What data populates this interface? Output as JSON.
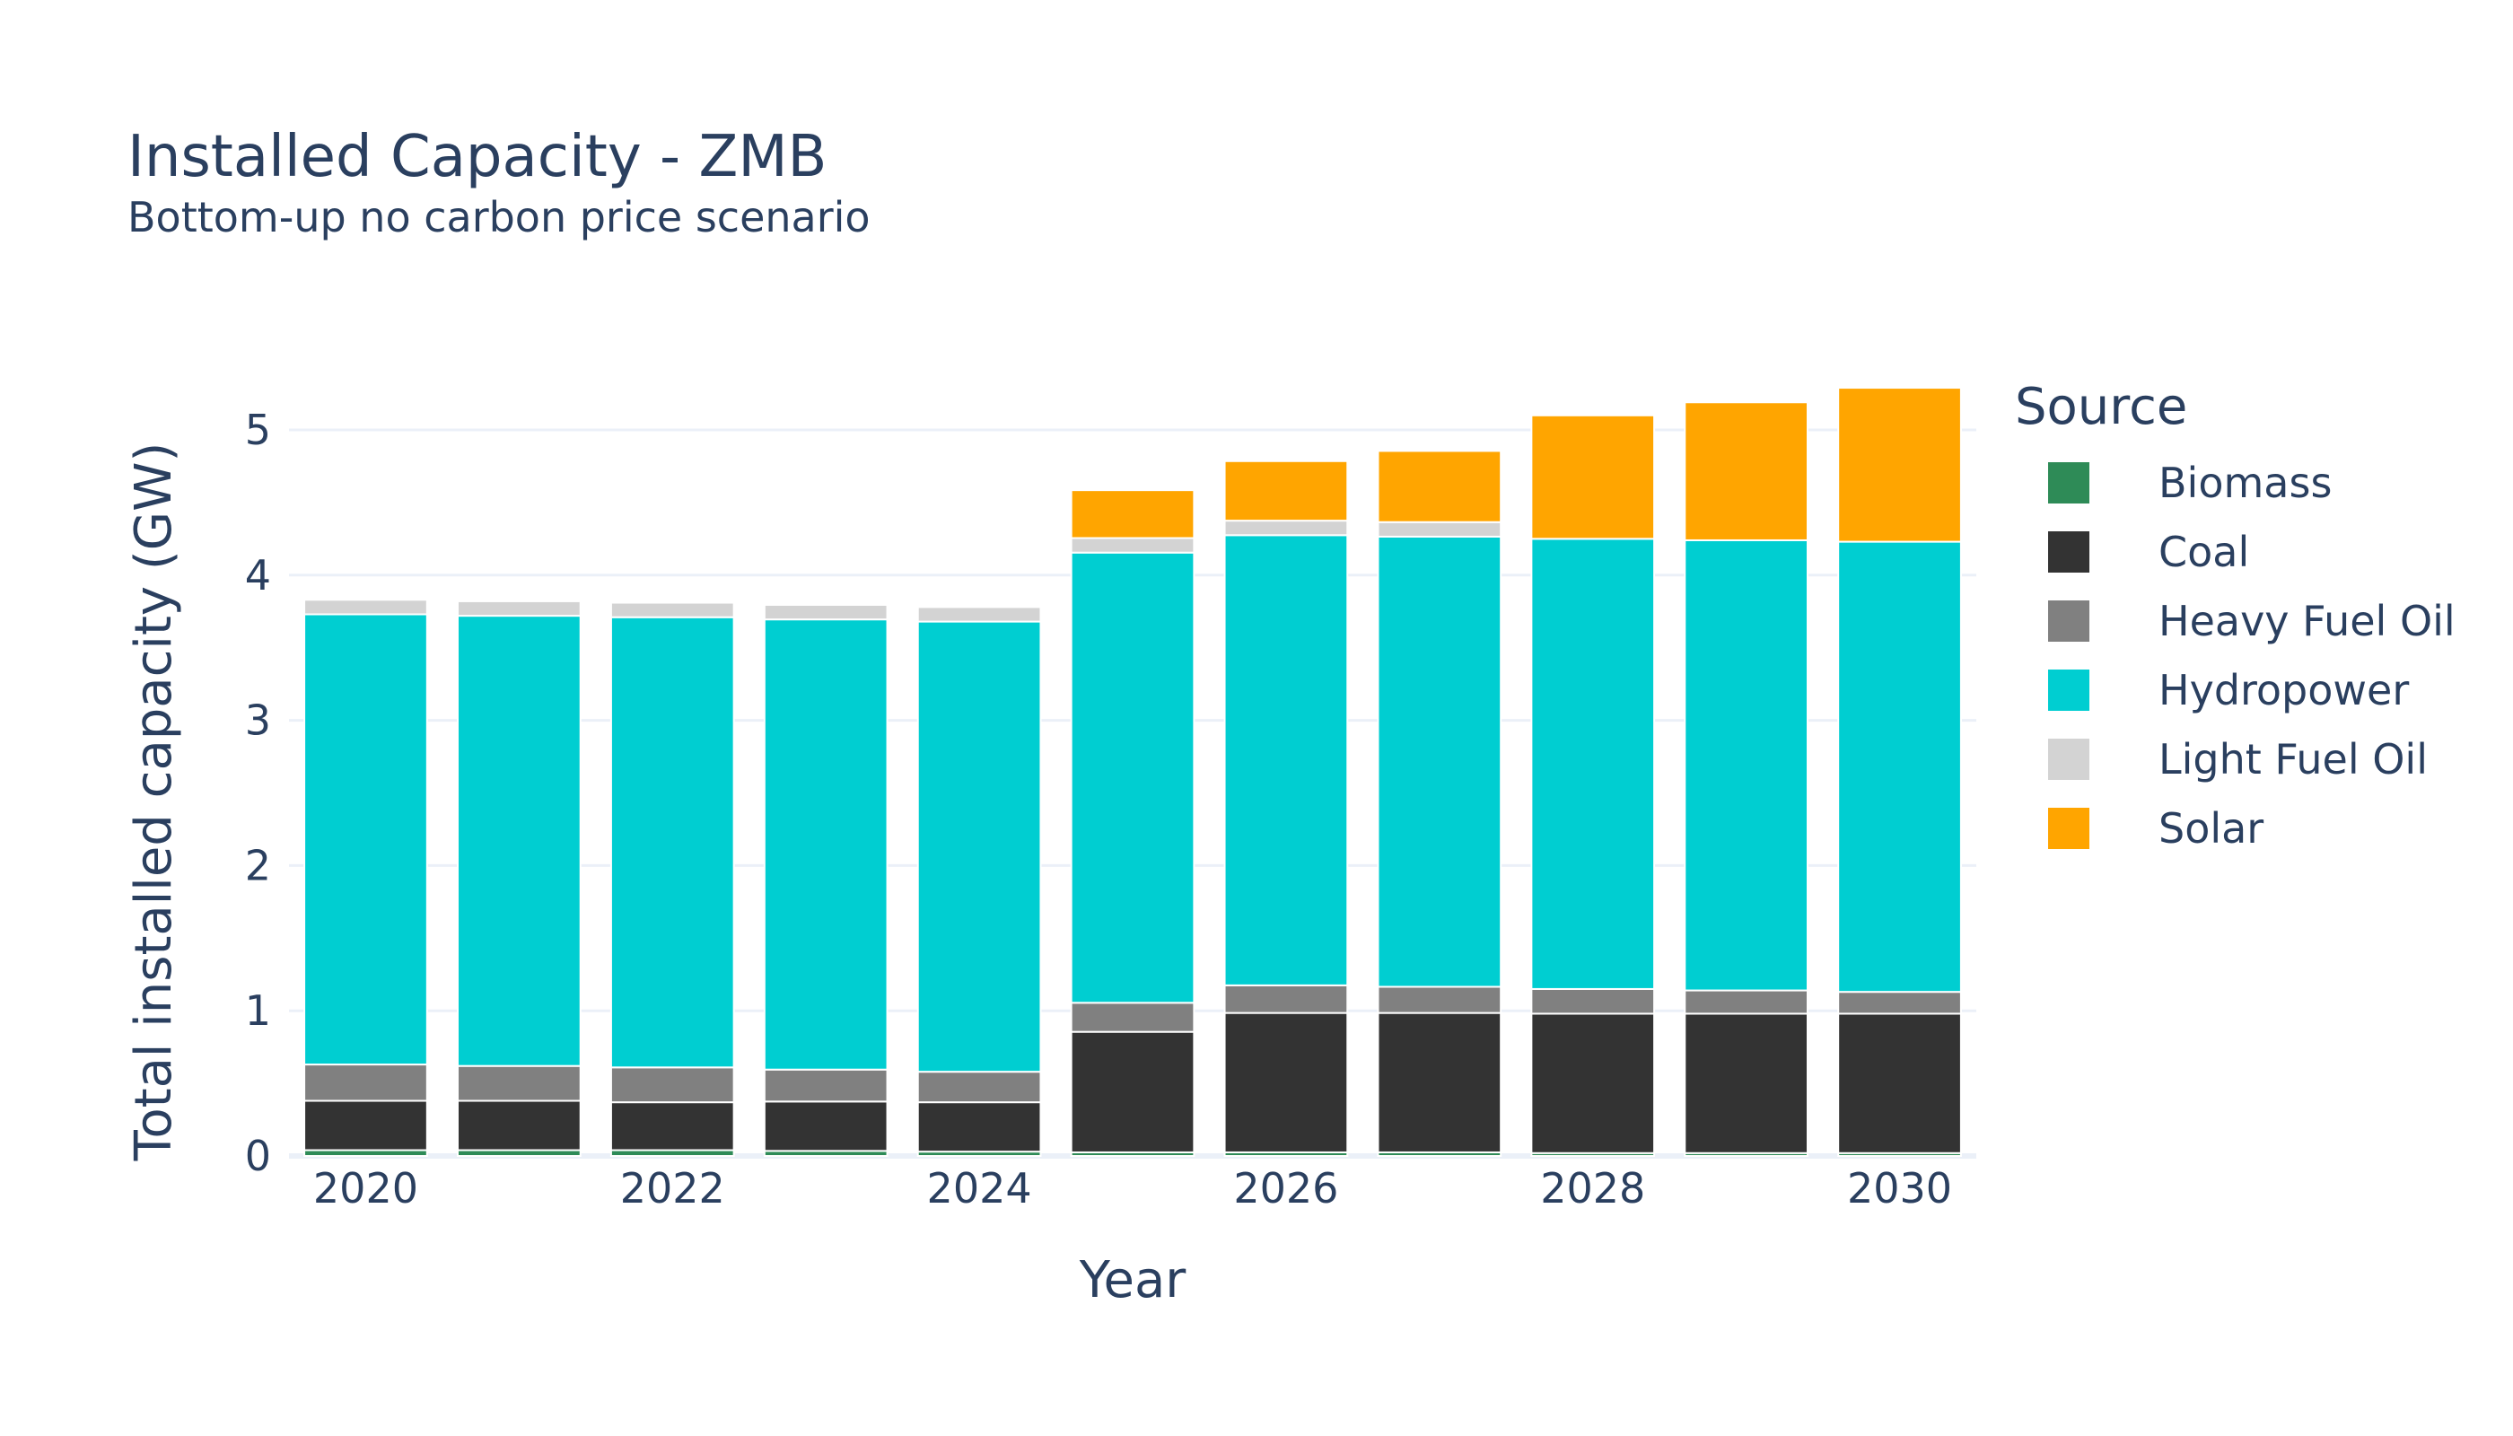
{
  "chart_data": {
    "type": "bar",
    "stacked": true,
    "title": "Installed Capacity - ZMB",
    "subtitle": "Bottom-up no carbon price scenario",
    "xlabel": "Year",
    "ylabel": "Total installed capacity (GW)",
    "x": [
      2020,
      2021,
      2022,
      2023,
      2024,
      2025,
      2026,
      2027,
      2028,
      2029,
      2030
    ],
    "x_tick_labels": [
      "2020",
      "2022",
      "2024",
      "2026",
      "2028",
      "2030"
    ],
    "y_tick_labels": [
      "0",
      "1",
      "2",
      "3",
      "4",
      "5"
    ],
    "ylim": [
      0,
      5.55
    ],
    "grid": true,
    "legend": {
      "title": "Source",
      "placement": "right"
    },
    "series": [
      {
        "name": "Biomass",
        "color": "#2e8b57",
        "values": [
          0.04,
          0.04,
          0.04,
          0.035,
          0.03,
          0.025,
          0.025,
          0.025,
          0.02,
          0.02,
          0.02
        ]
      },
      {
        "name": "Coal",
        "color": "#333333",
        "values": [
          0.34,
          0.34,
          0.33,
          0.34,
          0.34,
          0.83,
          0.96,
          0.96,
          0.96,
          0.96,
          0.96
        ]
      },
      {
        "name": "Heavy Fuel Oil",
        "color": "#808080",
        "values": [
          0.25,
          0.24,
          0.24,
          0.22,
          0.21,
          0.2,
          0.19,
          0.18,
          0.17,
          0.16,
          0.15
        ]
      },
      {
        "name": "Hydropower",
        "color": "#00ced1",
        "values": [
          3.1,
          3.1,
          3.1,
          3.1,
          3.1,
          3.1,
          3.1,
          3.1,
          3.1,
          3.1,
          3.1
        ]
      },
      {
        "name": "Light Fuel Oil",
        "color": "#d3d3d3",
        "values": [
          0.1,
          0.1,
          0.1,
          0.1,
          0.1,
          0.1,
          0.1,
          0.1,
          0.0,
          0.0,
          0.0
        ]
      },
      {
        "name": "Solar",
        "color": "#ffa500",
        "values": [
          0.0,
          0.0,
          0.0,
          0.0,
          0.0,
          0.33,
          0.41,
          0.49,
          0.85,
          0.95,
          1.06
        ]
      }
    ]
  }
}
